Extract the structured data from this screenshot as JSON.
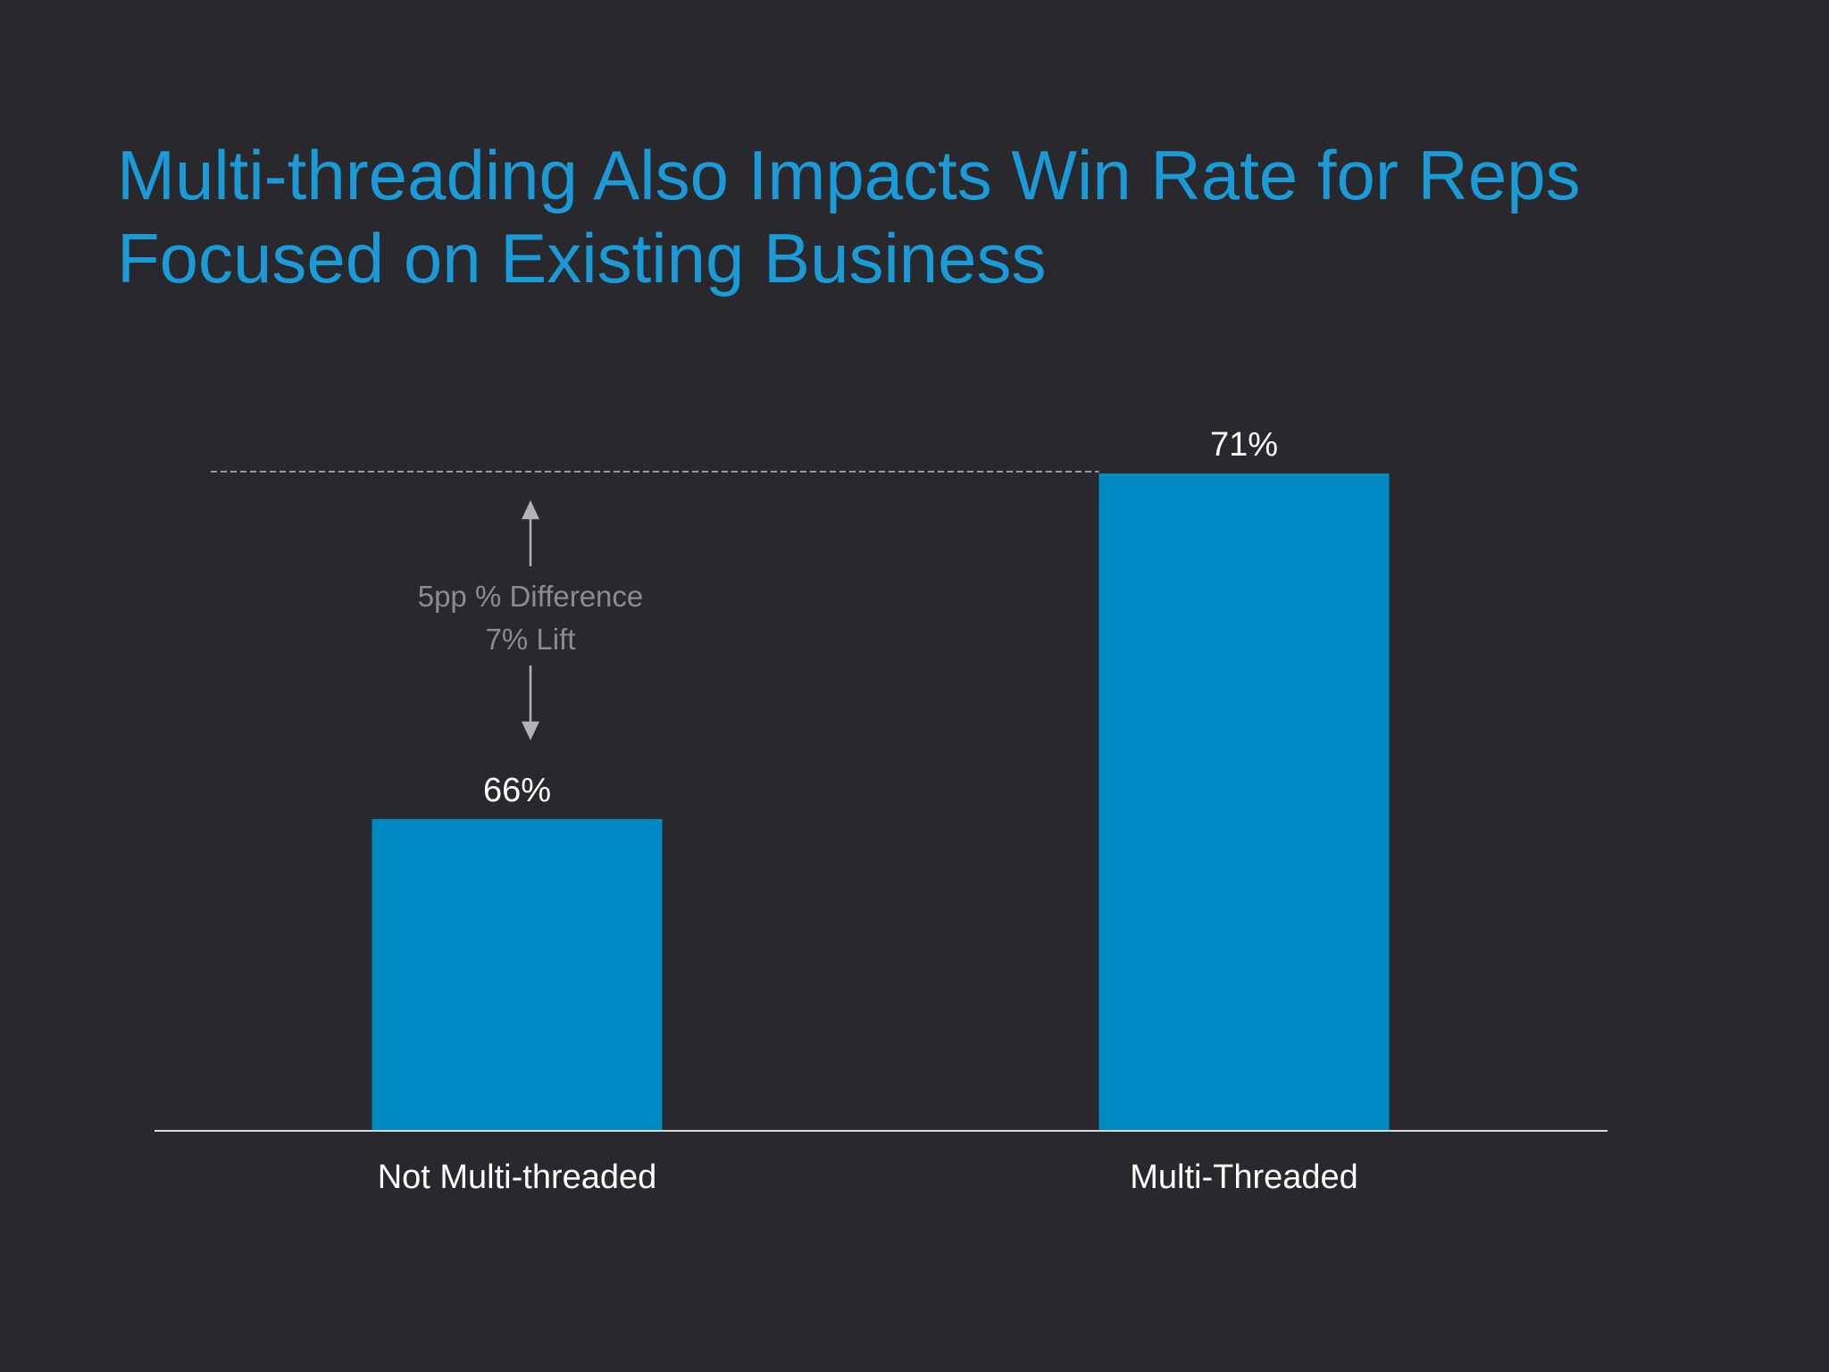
{
  "title": {
    "line1": "Multi-threading Also Impacts Win Rate for Reps",
    "line2": "Focused on Existing Business"
  },
  "annotation": {
    "difference_label": "5pp % Difference",
    "lift_label": "7% Lift"
  },
  "colors": {
    "background": "#29292d",
    "title": "#1a9ad6",
    "bar": "#0089c2",
    "axis": "#d9d9d9",
    "data_label": "#ffffff",
    "annotation": "#8c8c8c",
    "arrow": "#b3b3b3",
    "reference_line": "#9a9a9a"
  },
  "chart_data": {
    "type": "bar",
    "title": "Multi-threading Also Impacts Win Rate for Reps Focused on Existing Business",
    "categories": [
      "Not Multi-threaded",
      "Multi-Threaded"
    ],
    "values": [
      66,
      71
    ],
    "data_labels": [
      "66%",
      "71%"
    ],
    "unit": "%",
    "ylim": [
      0,
      71
    ],
    "grid": false,
    "legend": "none",
    "reference_line": {
      "value": 71,
      "style": "dashed"
    },
    "annotations": [
      "5pp % Difference",
      "7% Lift"
    ]
  }
}
